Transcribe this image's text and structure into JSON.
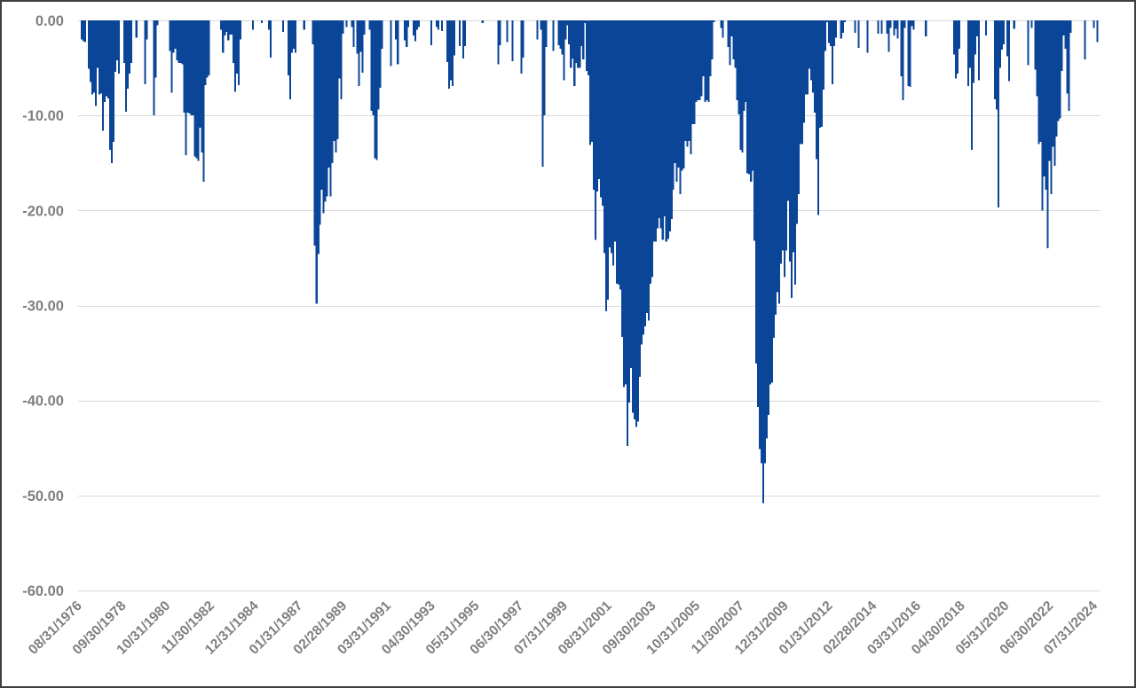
{
  "chart_data": {
    "type": "bar",
    "title": "",
    "xlabel": "",
    "ylabel": "",
    "ylim": [
      -60,
      0
    ],
    "grid": true,
    "legend": null,
    "bar_color": "#0b4598",
    "frequency": "monthly",
    "start_date": "08/31/1976",
    "end_date": "07/31/2024",
    "y_ticks": {
      "values": [
        0,
        -10,
        -20,
        -30,
        -40,
        -50,
        -60
      ],
      "labels": [
        "0.00",
        "-10.00",
        "-20.00",
        "-30.00",
        "-40.00",
        "-50.00",
        "-60.00"
      ]
    },
    "x_ticks": {
      "every_n_points": 25,
      "labels": [
        "08/31/1976",
        "09/30/1978",
        "10/31/1980",
        "11/30/1982",
        "12/31/1984",
        "01/31/1987",
        "02/28/1989",
        "03/31/1991",
        "04/30/1993",
        "05/31/1995",
        "06/30/1997",
        "07/31/1999",
        "08/31/2001",
        "09/30/2003",
        "10/31/2005",
        "11/30/2007",
        "12/31/2009",
        "01/31/2012",
        "02/28/2014",
        "03/31/2016",
        "04/30/2018",
        "05/31/2020",
        "06/30/2022",
        "07/31/2024"
      ]
    },
    "values": [
      -2.0,
      -2.2,
      -2.3,
      0,
      -5.1,
      -6.5,
      -7.8,
      -7.6,
      -9.0,
      -5.0,
      -7.8,
      -7.7,
      -11.6,
      -8.6,
      -8.0,
      -8.2,
      -13.6,
      -15.0,
      -12.8,
      -5.4,
      -4.2,
      -5.6,
      0,
      0,
      -4.5,
      -9.6,
      -7.2,
      -5.6,
      -4.5,
      0,
      0,
      -1.8,
      0,
      0,
      0,
      0,
      -6.7,
      -2.0,
      0,
      0,
      0,
      -10.0,
      -6.0,
      -0.5,
      0,
      0,
      0,
      0,
      0,
      0,
      -3.2,
      -7.6,
      -3.4,
      -3.0,
      -4.2,
      -4.5,
      -4.5,
      -4.6,
      -9.7,
      -14.2,
      -9.7,
      -9.8,
      -10.0,
      -10.0,
      -14.3,
      -14.5,
      -14.8,
      -11.3,
      -13.9,
      -17.0,
      -6.8,
      -6.0,
      -5.8,
      0,
      0,
      0,
      0,
      0,
      0,
      -1.0,
      -3.4,
      -1.6,
      -1.2,
      -2.1,
      -1.5,
      -1.5,
      -4.5,
      -7.5,
      -5.6,
      -6.8,
      -2.0,
      0,
      0,
      0,
      0,
      0,
      0,
      -1.0,
      0,
      0,
      0,
      0,
      -0.3,
      0,
      0,
      0,
      -1.0,
      -3.9,
      0,
      0,
      0,
      0,
      0,
      0,
      -1.2,
      0,
      0,
      -5.8,
      -8.3,
      -3.4,
      -3.0,
      -3.4,
      0,
      0,
      0,
      0,
      -1.0,
      0,
      0,
      0,
      0,
      -2.5,
      -23.7,
      -29.8,
      -24.6,
      -21.5,
      -17.8,
      -20.3,
      -19.1,
      -18.5,
      -15.5,
      -18.5,
      -15.0,
      -12.7,
      -13.9,
      -12.5,
      -6.1,
      -8.3,
      -1.4,
      0,
      -0.7,
      0,
      0,
      -0.7,
      -2.8,
      0,
      -3.5,
      -6.9,
      -3.3,
      -5.5,
      -1.5,
      0,
      0,
      -1.0,
      -9.5,
      -10.0,
      -14.5,
      -14.7,
      -9.4,
      -7.1,
      -3.0,
      0,
      0,
      0,
      0,
      -4.8,
      0,
      0,
      -2.0,
      -4.6,
      0,
      0,
      0,
      -2.1,
      -2.8,
      -0.7,
      0,
      0,
      -1.6,
      -2.2,
      -1.0,
      -0.7,
      0,
      0,
      0,
      0,
      0,
      0,
      -2.6,
      0,
      0,
      -0.7,
      -1.0,
      0,
      -1.1,
      0,
      0,
      -4.4,
      -7.2,
      -6.3,
      -6.9,
      -3.7,
      0,
      0,
      -2.7,
      0,
      -4.0,
      -2.7,
      0,
      0,
      0,
      0,
      0,
      0,
      0,
      0,
      0,
      -0.3,
      0,
      0,
      0,
      0,
      0,
      0,
      0,
      0,
      -4.6,
      -2.6,
      0,
      0,
      0,
      -2.3,
      0,
      0,
      -4.3,
      0,
      0,
      0,
      0,
      -5.6,
      -3.9,
      0,
      0,
      0,
      0,
      0,
      0,
      0,
      -2.0,
      0,
      -1.0,
      -15.4,
      -10.0,
      -2.8,
      0,
      0,
      0,
      -3.2,
      0,
      0,
      -2.6,
      -3.0,
      -3.6,
      -6.3,
      -2.0,
      -0.5,
      -2.5,
      -5.0,
      -4.0,
      -6.9,
      -4.5,
      -5.0,
      -5.0,
      -2.7,
      -4.1,
      -0.3,
      -5.3,
      -5.8,
      -13.1,
      -12.8,
      -17.8,
      -23.1,
      -18.0,
      -16.7,
      -18.6,
      -19.5,
      -24.5,
      -30.6,
      -29.4,
      -23.9,
      -24.5,
      -25.8,
      -23.3,
      -27.7,
      -27.8,
      -28.3,
      -33.3,
      -38.6,
      -38.3,
      -44.8,
      -40.2,
      -36.6,
      -41.3,
      -42.0,
      -42.8,
      -42.2,
      -37.5,
      -34.1,
      -33.1,
      -32.2,
      -30.8,
      -31.6,
      -27.7,
      -27.0,
      -23.3,
      -23.3,
      -21.9,
      -20.8,
      -21.9,
      -23.1,
      -20.6,
      -23.3,
      -23.0,
      -22.2,
      -20.9,
      -17.8,
      -15.0,
      -17.0,
      -15.5,
      -18.3,
      -15.8,
      -15.6,
      -12.7,
      -13.3,
      -12.7,
      -14.1,
      -10.9,
      -10.9,
      -8.6,
      -8.4,
      -8.4,
      -8.0,
      -5.9,
      -8.6,
      -8.4,
      -8.6,
      -5.9,
      -4.1,
      -0.2,
      0,
      0,
      0,
      -0.8,
      -1.8,
      0,
      0,
      -2.8,
      -4.7,
      -1.7,
      -4.1,
      -5.0,
      -8.4,
      -9.9,
      -13.6,
      -13.9,
      -9.5,
      -8.6,
      -16.1,
      -16.2,
      -17.0,
      -15.8,
      -23.2,
      -36.1,
      -40.7,
      -45.1,
      -46.6,
      -50.8,
      -46.6,
      -44.0,
      -41.5,
      -38.3,
      -38.1,
      -33.4,
      -31.0,
      -28.6,
      -29.8,
      -25.6,
      -24.2,
      -27.0,
      -24.2,
      -19.0,
      -25.4,
      -29.2,
      -24.4,
      -27.8,
      -21.4,
      -18.3,
      -13.0,
      -13.0,
      -10.8,
      -7.8,
      -7.8,
      -5.1,
      -6.3,
      -7.6,
      -9.7,
      -14.6,
      -20.5,
      -11.3,
      -11.2,
      -7.3,
      -3.2,
      -0.2,
      -2.4,
      -2.7,
      -6.7,
      -2.7,
      -1.8,
      0,
      0,
      -1.9,
      -1.3,
      -0.2,
      0,
      0,
      0,
      0,
      0,
      -1.3,
      0,
      -2.9,
      0,
      0,
      0,
      0,
      -3.4,
      0,
      0,
      0,
      0,
      0,
      -1.4,
      0,
      -1.4,
      0,
      0,
      -1.4,
      -3.3,
      -0.8,
      0,
      -1.6,
      -0.9,
      -1.9,
      0,
      -5.9,
      -8.4,
      -0.8,
      0,
      -6.9,
      -7.0,
      -0.6,
      -1.0,
      0,
      0,
      0,
      0,
      0,
      0,
      -1.7,
      0,
      0,
      0,
      0,
      0,
      0,
      0,
      0,
      0,
      0,
      0,
      0,
      0,
      0,
      0,
      -3.6,
      -6.1,
      -5.6,
      -3.0,
      0,
      0,
      0,
      0,
      -6.9,
      -5.0,
      -13.6,
      -6.6,
      -3.6,
      -1.7,
      -6.3,
      0,
      0,
      0,
      -1.6,
      0,
      0,
      0,
      0,
      -8.3,
      -9.4,
      -19.7,
      -5.0,
      -3.1,
      -2.5,
      0,
      -3.8,
      -6.4,
      0,
      0,
      -0.9,
      0,
      0,
      0,
      0,
      0,
      0,
      0,
      -4.7,
      0,
      -0.8,
      0,
      -5.2,
      -8.0,
      -13.0,
      -12.8,
      -20.0,
      -16.4,
      -17.8,
      -24.0,
      -14.8,
      -18.3,
      -13.3,
      -15.3,
      -12.2,
      -10.6,
      -10.3,
      -5.3,
      -1.6,
      -3.0,
      -7.7,
      -9.5,
      -1.3,
      0,
      0,
      0,
      0,
      0,
      0,
      0,
      -4.1,
      0,
      0,
      0,
      0,
      -0.8,
      0,
      -2.3
    ]
  }
}
